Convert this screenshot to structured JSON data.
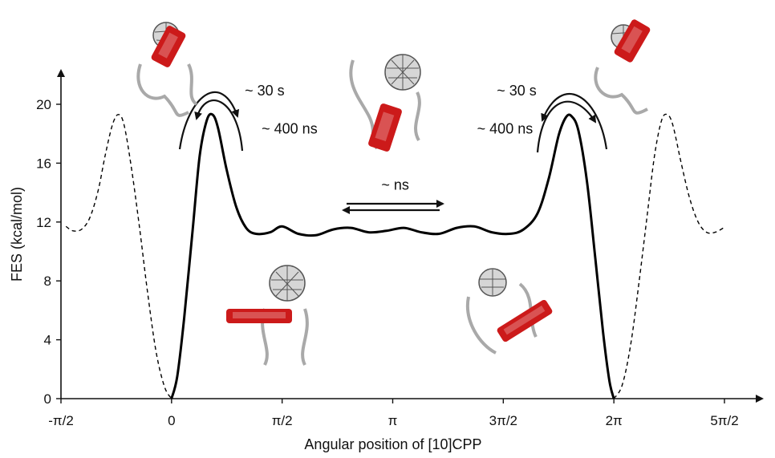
{
  "chart_data": {
    "type": "line",
    "title": "",
    "xlabel": "Angular position of [10]CPP",
    "ylabel": "FES (kcal/mol)",
    "xlim": [
      -1.5708,
      7.854
    ],
    "ylim": [
      0,
      22
    ],
    "x_ticks": [
      {
        "value": -1.5708,
        "label": "-π/2"
      },
      {
        "value": 0,
        "label": "0"
      },
      {
        "value": 1.5708,
        "label": "π/2"
      },
      {
        "value": 3.1416,
        "label": "π"
      },
      {
        "value": 4.7124,
        "label": "3π/2"
      },
      {
        "value": 6.2832,
        "label": "2π"
      },
      {
        "value": 7.854,
        "label": "5π/2"
      }
    ],
    "y_ticks": [
      {
        "value": 0,
        "label": "0"
      },
      {
        "value": 4,
        "label": "4"
      },
      {
        "value": 8,
        "label": "8"
      },
      {
        "value": 12,
        "label": "12"
      },
      {
        "value": 16,
        "label": "16"
      },
      {
        "value": 20,
        "label": "20"
      }
    ],
    "series": [
      {
        "style": "solid",
        "points": [
          [
            0.0,
            0.0
          ],
          [
            0.08,
            1.5
          ],
          [
            0.18,
            5.5
          ],
          [
            0.3,
            11.5
          ],
          [
            0.4,
            16.5
          ],
          [
            0.5,
            18.9
          ],
          [
            0.58,
            19.3
          ],
          [
            0.66,
            18.4
          ],
          [
            0.78,
            15.6
          ],
          [
            0.92,
            13.0
          ],
          [
            1.06,
            11.6
          ],
          [
            1.2,
            11.2
          ],
          [
            1.4,
            11.3
          ],
          [
            1.57,
            11.7
          ],
          [
            1.8,
            11.2
          ],
          [
            2.05,
            11.1
          ],
          [
            2.3,
            11.5
          ],
          [
            2.55,
            11.6
          ],
          [
            2.8,
            11.3
          ],
          [
            3.05,
            11.4
          ],
          [
            3.3,
            11.6
          ],
          [
            3.55,
            11.3
          ],
          [
            3.8,
            11.2
          ],
          [
            4.05,
            11.6
          ],
          [
            4.3,
            11.7
          ],
          [
            4.55,
            11.3
          ],
          [
            4.8,
            11.2
          ],
          [
            5.0,
            11.5
          ],
          [
            5.2,
            12.6
          ],
          [
            5.36,
            15.0
          ],
          [
            5.5,
            17.9
          ],
          [
            5.6,
            19.1
          ],
          [
            5.68,
            19.2
          ],
          [
            5.78,
            18.2
          ],
          [
            5.9,
            14.8
          ],
          [
            6.02,
            9.5
          ],
          [
            6.13,
            4.5
          ],
          [
            6.22,
            1.2
          ],
          [
            6.283,
            0.0
          ]
        ]
      },
      {
        "style": "dashed",
        "points": [
          [
            -1.5,
            11.7
          ],
          [
            -1.4,
            11.4
          ],
          [
            -1.28,
            11.5
          ],
          [
            -1.16,
            12.3
          ],
          [
            -1.04,
            14.2
          ],
          [
            -0.94,
            16.6
          ],
          [
            -0.84,
            18.6
          ],
          [
            -0.76,
            19.3
          ],
          [
            -0.68,
            18.7
          ],
          [
            -0.58,
            16.0
          ],
          [
            -0.46,
            11.8
          ],
          [
            -0.34,
            7.2
          ],
          [
            -0.22,
            3.2
          ],
          [
            -0.1,
            0.8
          ],
          [
            0.0,
            0.0
          ]
        ]
      },
      {
        "style": "dashed",
        "points": [
          [
            6.283,
            0.0
          ],
          [
            6.4,
            0.9
          ],
          [
            6.52,
            3.6
          ],
          [
            6.64,
            7.9
          ],
          [
            6.76,
            12.6
          ],
          [
            6.86,
            16.5
          ],
          [
            6.96,
            18.9
          ],
          [
            7.04,
            19.3
          ],
          [
            7.12,
            18.6
          ],
          [
            7.24,
            16.0
          ],
          [
            7.36,
            13.6
          ],
          [
            7.48,
            12.0
          ],
          [
            7.6,
            11.3
          ],
          [
            7.72,
            11.3
          ],
          [
            7.84,
            11.6
          ]
        ]
      }
    ],
    "annotations": [
      {
        "text": "~ 30 s",
        "x": 1.04,
        "y": 20.6
      },
      {
        "text": "~ 400 ns",
        "x": 1.28,
        "y": 18.0
      },
      {
        "text": "~ ns",
        "x": 2.98,
        "y": 14.2
      },
      {
        "text": "~ 30 s",
        "x": 4.62,
        "y": 20.6
      },
      {
        "text": "~ 400 ns",
        "x": 4.34,
        "y": 18.0
      }
    ],
    "colors": {
      "line": "#000000",
      "carbon": "#8a8a8a",
      "cpp": "#cc1a1a"
    }
  }
}
